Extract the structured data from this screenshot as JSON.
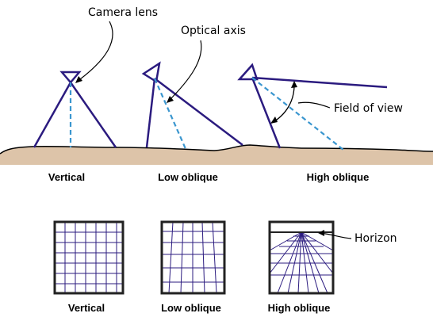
{
  "annotations": {
    "camera_lens": "Camera lens",
    "optical_axis": "Optical axis",
    "field_of_view": "Field of view",
    "horizon": "Horizon"
  },
  "top_row": {
    "vertical": "Vertical",
    "low_oblique": "Low oblique",
    "high_oblique": "High oblique"
  },
  "bottom_row": {
    "vertical": "Vertical",
    "low_oblique": "Low oblique",
    "high_oblique": "High oblique"
  },
  "colors": {
    "ground": "#ddc4a9",
    "ground_outline": "#000000",
    "camera": "#2b1b7f",
    "optical_axis": "#3a96cf",
    "grid_line": "#2b1b7f",
    "frame": "#222222"
  }
}
